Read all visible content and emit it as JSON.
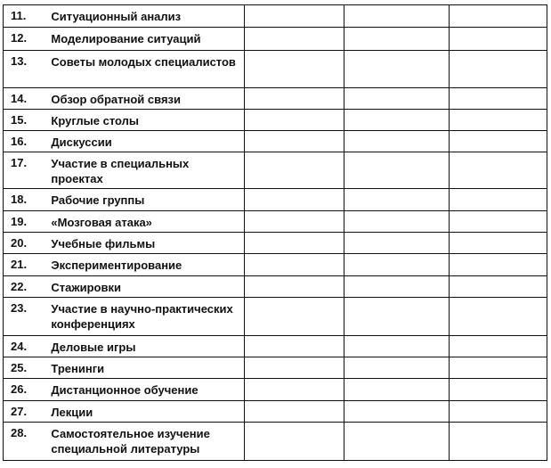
{
  "rows": [
    {
      "num": "11.",
      "text": "Ситуационный анализ"
    },
    {
      "num": "12.",
      "text": "Моделирование ситуаций"
    },
    {
      "num": "13.",
      "text": "Советы молодых специалистов"
    },
    {
      "num": "14.",
      "text": "Обзор обратной связи"
    },
    {
      "num": "15.",
      "text": "Круглые столы"
    },
    {
      "num": "16.",
      "text": "Дискуссии"
    },
    {
      "num": "17.",
      "text": "Участие в специальных проектах"
    },
    {
      "num": "18.",
      "text": "Рабочие группы"
    },
    {
      "num": "19.",
      "text": "«Мозговая атака»"
    },
    {
      "num": "20.",
      "text": "Учебные фильмы"
    },
    {
      "num": "21.",
      "text": "Экспериментирование"
    },
    {
      "num": "22.",
      "text": "Стажировки"
    },
    {
      "num": "23.",
      "text": "Участие в научно-практических конференциях"
    },
    {
      "num": "24.",
      "text": "Деловые игры"
    },
    {
      "num": "25.",
      "text": "Тренинги"
    },
    {
      "num": "26.",
      "text": "Дистанционное обучение"
    },
    {
      "num": "27.",
      "text": "Лекции"
    },
    {
      "num": "28.",
      "text": "Самостоятельное изучение специальной литературы"
    }
  ]
}
